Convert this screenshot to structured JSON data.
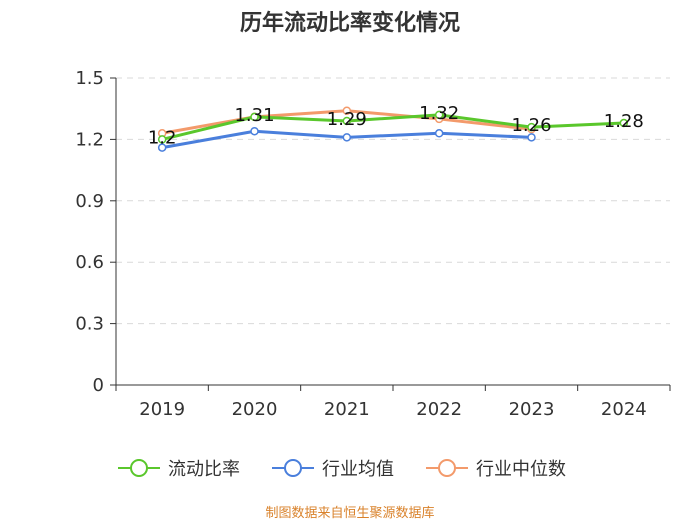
{
  "chart_data": {
    "type": "line",
    "title": "历年流动比率变化情况",
    "categories": [
      "2019",
      "2020",
      "2021",
      "2022",
      "2023",
      "2024"
    ],
    "yticks": [
      "0",
      "0.3",
      "0.6",
      "0.9",
      "1.2",
      "1.5"
    ],
    "ylim": [
      0,
      1.5
    ],
    "grid": true,
    "legend_position": "bottom",
    "series": [
      {
        "name": "流动比率",
        "color": "#5ac72c",
        "values": [
          1.2,
          1.31,
          1.29,
          1.32,
          1.26,
          1.28
        ],
        "labels": [
          "1.2",
          "1.31",
          "1.29",
          "1.32",
          "1.26",
          "1.28"
        ]
      },
      {
        "name": "行业均值",
        "color": "#4a7fdc",
        "values": [
          1.16,
          1.24,
          1.21,
          1.23,
          1.21,
          null
        ]
      },
      {
        "name": "行业中位数",
        "color": "#f39a6b",
        "values": [
          1.23,
          1.31,
          1.34,
          1.3,
          1.25,
          null
        ]
      }
    ]
  },
  "source": "制图数据来自恒生聚源数据库"
}
